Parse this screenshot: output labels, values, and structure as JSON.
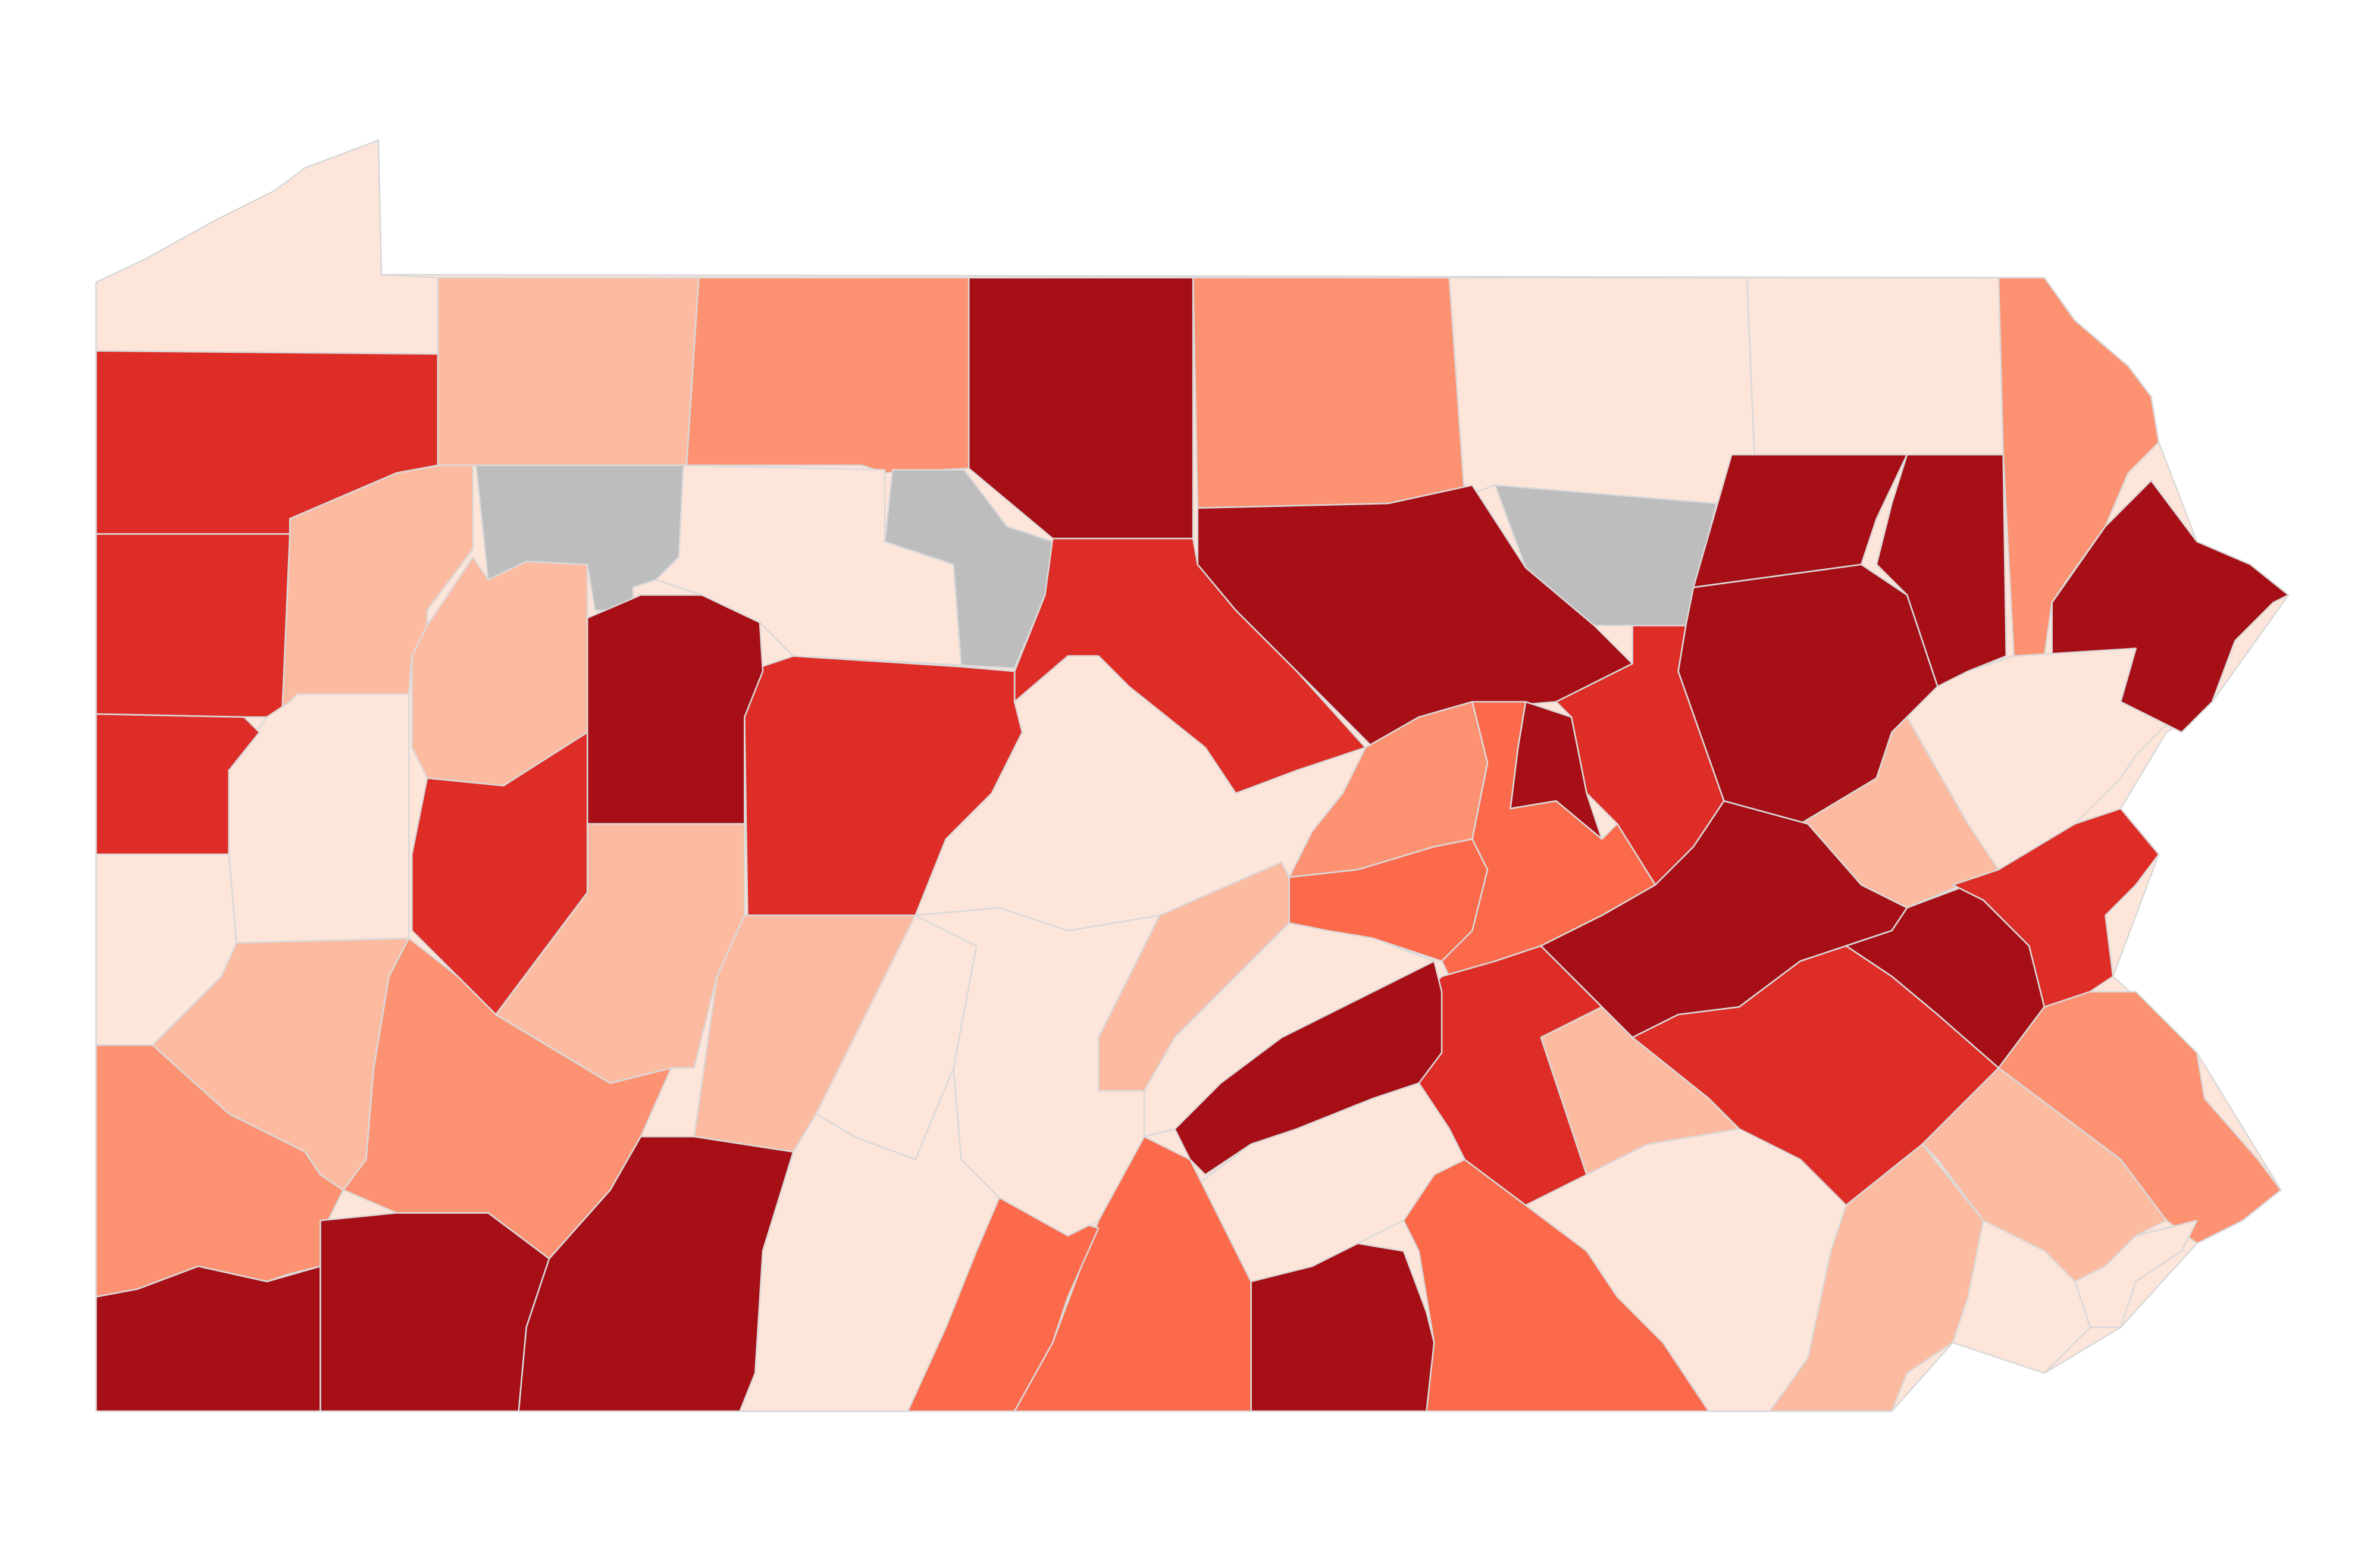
{
  "map": {
    "palette": [
      "#fee5d9",
      "#fcbba1",
      "#fc9272",
      "#fb6a4a",
      "#de2d26",
      "#a50f15",
      "#bdbdbd"
    ]
  }
}
